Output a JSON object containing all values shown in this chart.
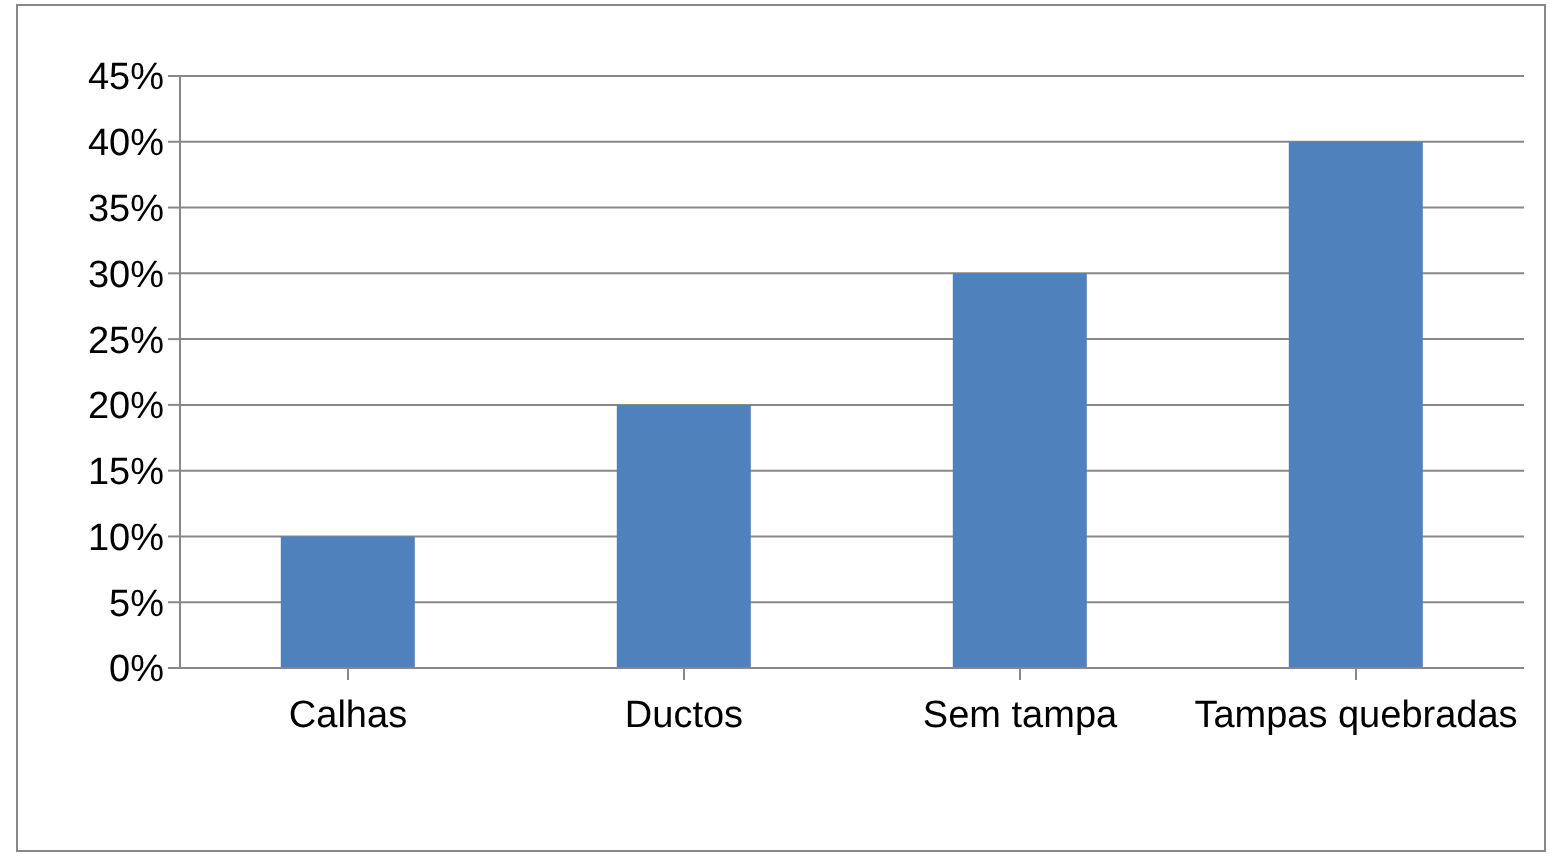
{
  "chart_data": {
    "type": "bar",
    "categories": [
      "Calhas",
      "Ductos",
      "Sem tampa",
      "Tampas quebradas"
    ],
    "values": [
      10,
      20,
      30,
      40
    ],
    "color": "#4f81bd",
    "ylim": [
      0,
      45
    ],
    "yticks": [
      {
        "value": 0,
        "label": "0%"
      },
      {
        "value": 5,
        "label": "5%"
      },
      {
        "value": 10,
        "label": "10%"
      },
      {
        "value": 15,
        "label": "15%"
      },
      {
        "value": 20,
        "label": "20%"
      },
      {
        "value": 25,
        "label": "25%"
      },
      {
        "value": 30,
        "label": "30%"
      },
      {
        "value": 35,
        "label": "35%"
      },
      {
        "value": 40,
        "label": "40%"
      },
      {
        "value": 45,
        "label": "45%"
      }
    ],
    "grid": "y",
    "legend": false
  }
}
